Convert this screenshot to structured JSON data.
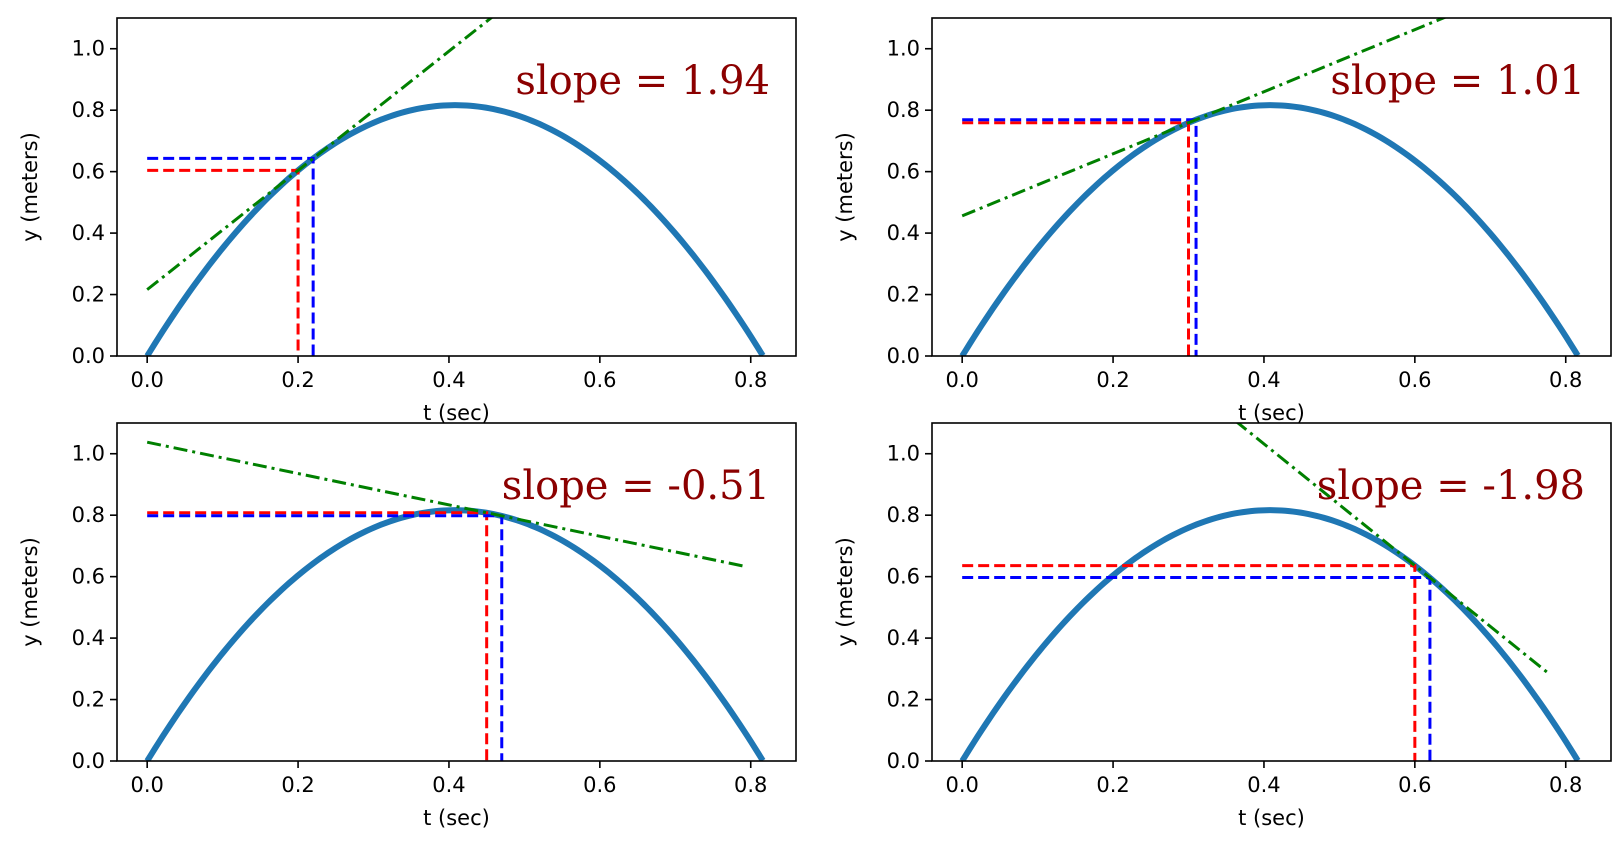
{
  "figure": {
    "colors": {
      "curve": "#1f77b4",
      "tangent": "#008000",
      "point1": "#ff0000",
      "point2": "#0000ff",
      "annotation": "#8b0000"
    }
  },
  "chart_data": [
    {
      "type": "line",
      "xlabel": "t (sec)",
      "ylabel": "y (meters)",
      "xlim": [
        -0.04,
        0.86
      ],
      "ylim": [
        0,
        1.1
      ],
      "xticks": [
        "0.0",
        "0.2",
        "0.4",
        "0.6",
        "0.8"
      ],
      "yticks": [
        "0.0",
        "0.2",
        "0.4",
        "0.6",
        "0.8",
        "1.0"
      ],
      "curve": {
        "v0": 4.0,
        "g": 9.8,
        "t_end": 0.816
      },
      "point1": {
        "t": 0.2,
        "y": 0.604
      },
      "point2": {
        "t": 0.22,
        "y": 0.643
      },
      "tangent": {
        "slope": 1.94,
        "t_start": 0.0,
        "t_end": 0.8
      },
      "annotation": "slope =  1.94"
    },
    {
      "type": "line",
      "xlabel": "t (sec)",
      "ylabel": "y (meters)",
      "xlim": [
        -0.04,
        0.86
      ],
      "ylim": [
        0,
        1.1
      ],
      "xticks": [
        "0.0",
        "0.2",
        "0.4",
        "0.6",
        "0.8"
      ],
      "yticks": [
        "0.0",
        "0.2",
        "0.4",
        "0.6",
        "0.8",
        "1.0"
      ],
      "curve": {
        "v0": 4.0,
        "g": 9.8,
        "t_end": 0.816
      },
      "point1": {
        "t": 0.3,
        "y": 0.759
      },
      "point2": {
        "t": 0.31,
        "y": 0.769
      },
      "tangent": {
        "slope": 1.01,
        "t_start": 0.0,
        "t_end": 0.8
      },
      "annotation": "slope =  1.01"
    },
    {
      "type": "line",
      "xlabel": "t (sec)",
      "ylabel": "y (meters)",
      "xlim": [
        -0.04,
        0.86
      ],
      "ylim": [
        0,
        1.1
      ],
      "xticks": [
        "0.0",
        "0.2",
        "0.4",
        "0.6",
        "0.8"
      ],
      "yticks": [
        "0.0",
        "0.2",
        "0.4",
        "0.6",
        "0.8",
        "1.0"
      ],
      "curve": {
        "v0": 4.0,
        "g": 9.8,
        "t_end": 0.816
      },
      "point1": {
        "t": 0.45,
        "y": 0.808
      },
      "point2": {
        "t": 0.47,
        "y": 0.798
      },
      "tangent": {
        "slope": -0.51,
        "t_start": 0.0,
        "t_end": 0.79
      },
      "annotation": "slope = -0.51"
    },
    {
      "type": "line",
      "xlabel": "t (sec)",
      "ylabel": "y (meters)",
      "xlim": [
        -0.04,
        0.86
      ],
      "ylim": [
        0,
        1.1
      ],
      "xticks": [
        "0.0",
        "0.2",
        "0.4",
        "0.6",
        "0.8"
      ],
      "yticks": [
        "0.0",
        "0.2",
        "0.4",
        "0.6",
        "0.8",
        "1.0"
      ],
      "curve": {
        "v0": 4.0,
        "g": 9.8,
        "t_end": 0.816
      },
      "point1": {
        "t": 0.6,
        "y": 0.636
      },
      "point2": {
        "t": 0.62,
        "y": 0.597
      },
      "tangent": {
        "slope": -1.98,
        "t_start": 0.0,
        "t_end": 0.78
      },
      "annotation": "slope = -1.98"
    }
  ]
}
